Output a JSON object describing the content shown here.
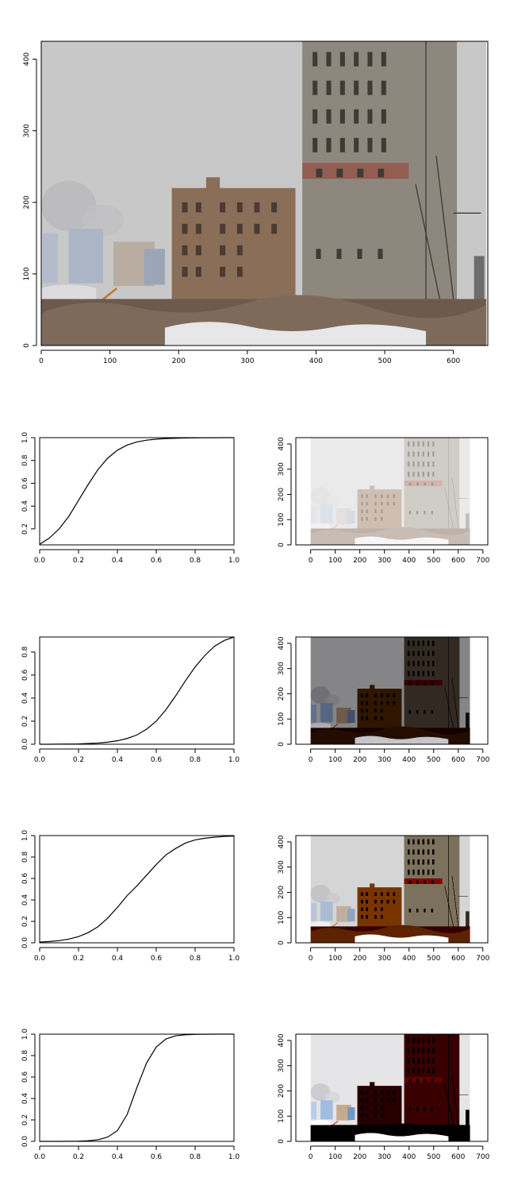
{
  "chart_data": [
    {
      "id": "main-photo",
      "type": "image-plot",
      "xlim": [
        0,
        650
      ],
      "ylim": [
        0,
        425
      ],
      "x_ticks": [
        0,
        100,
        200,
        300,
        400,
        500,
        600
      ],
      "y_ticks": [
        0,
        100,
        200,
        300,
        400
      ],
      "image": {
        "width": 648,
        "height": 425
      }
    },
    {
      "id": "curve-1",
      "type": "line",
      "xlim": [
        0,
        1
      ],
      "ylim": [
        0.06,
        1.0
      ],
      "x_ticks": [
        0.0,
        0.2,
        0.4,
        0.6,
        0.8,
        1.0
      ],
      "y_ticks": [
        0.2,
        0.4,
        0.6,
        0.8,
        1.0
      ],
      "x": [
        0,
        0.05,
        0.1,
        0.15,
        0.2,
        0.25,
        0.3,
        0.35,
        0.4,
        0.45,
        0.5,
        0.55,
        0.6,
        0.65,
        0.7,
        0.75,
        0.8,
        0.85,
        0.9,
        0.95,
        1.0
      ],
      "y": [
        0.065,
        0.12,
        0.2,
        0.31,
        0.45,
        0.59,
        0.72,
        0.82,
        0.89,
        0.935,
        0.962,
        0.978,
        0.987,
        0.992,
        0.995,
        0.997,
        0.998,
        0.999,
        0.999,
        1.0,
        1.0
      ]
    },
    {
      "id": "photo-1",
      "type": "image-plot",
      "variant": "brightened",
      "xlim": [
        -60,
        720
      ],
      "ylim": [
        0,
        425
      ],
      "x_ticks": [
        0,
        100,
        200,
        300,
        400,
        500,
        600,
        700
      ],
      "y_ticks": [
        0,
        100,
        200,
        300,
        400
      ]
    },
    {
      "id": "curve-2",
      "type": "line",
      "xlim": [
        0,
        1
      ],
      "ylim": [
        0,
        0.93
      ],
      "x_ticks": [
        0.0,
        0.2,
        0.4,
        0.6,
        0.8,
        1.0
      ],
      "y_ticks": [
        0.0,
        0.2,
        0.4,
        0.6,
        0.8
      ],
      "x": [
        0,
        0.05,
        0.1,
        0.15,
        0.2,
        0.25,
        0.3,
        0.35,
        0.4,
        0.45,
        0.5,
        0.55,
        0.6,
        0.65,
        0.7,
        0.75,
        0.8,
        0.85,
        0.9,
        0.95,
        1.0
      ],
      "y": [
        0.0,
        0.0,
        0.001,
        0.002,
        0.003,
        0.006,
        0.01,
        0.018,
        0.03,
        0.05,
        0.08,
        0.13,
        0.2,
        0.3,
        0.42,
        0.55,
        0.67,
        0.77,
        0.85,
        0.9,
        0.93
      ]
    },
    {
      "id": "photo-2",
      "type": "image-plot",
      "variant": "darkened",
      "xlim": [
        -60,
        720
      ],
      "ylim": [
        0,
        425
      ],
      "x_ticks": [
        0,
        100,
        200,
        300,
        400,
        500,
        600,
        700
      ],
      "y_ticks": [
        0,
        100,
        200,
        300,
        400
      ]
    },
    {
      "id": "curve-3",
      "type": "line",
      "xlim": [
        0,
        1
      ],
      "ylim": [
        0,
        1.0
      ],
      "x_ticks": [
        0.0,
        0.2,
        0.4,
        0.6,
        0.8,
        1.0
      ],
      "y_ticks": [
        0.0,
        0.2,
        0.4,
        0.6,
        0.8,
        1.0
      ],
      "x": [
        0,
        0.05,
        0.1,
        0.15,
        0.2,
        0.25,
        0.3,
        0.35,
        0.4,
        0.45,
        0.5,
        0.55,
        0.6,
        0.65,
        0.7,
        0.75,
        0.8,
        0.85,
        0.9,
        0.95,
        1.0
      ],
      "y": [
        0.007,
        0.012,
        0.02,
        0.035,
        0.058,
        0.095,
        0.15,
        0.23,
        0.33,
        0.44,
        0.53,
        0.63,
        0.73,
        0.82,
        0.88,
        0.93,
        0.96,
        0.975,
        0.985,
        0.992,
        0.995
      ]
    },
    {
      "id": "photo-3",
      "type": "image-plot",
      "variant": "contrast",
      "xlim": [
        -60,
        720
      ],
      "ylim": [
        0,
        425
      ],
      "x_ticks": [
        0,
        100,
        200,
        300,
        400,
        500,
        600,
        700
      ],
      "y_ticks": [
        0,
        100,
        200,
        300,
        400
      ]
    },
    {
      "id": "curve-4",
      "type": "line",
      "xlim": [
        0,
        1
      ],
      "ylim": [
        0,
        1.0
      ],
      "x_ticks": [
        0.0,
        0.2,
        0.4,
        0.6,
        0.8,
        1.0
      ],
      "y_ticks": [
        0.0,
        0.2,
        0.4,
        0.6,
        0.8,
        1.0
      ],
      "x": [
        0,
        0.05,
        0.1,
        0.15,
        0.2,
        0.25,
        0.3,
        0.35,
        0.4,
        0.45,
        0.5,
        0.55,
        0.6,
        0.65,
        0.7,
        0.75,
        0.8,
        0.85,
        0.9,
        0.95,
        1.0
      ],
      "y": [
        0.0,
        0.0,
        0.0,
        0.001,
        0.002,
        0.006,
        0.015,
        0.04,
        0.1,
        0.25,
        0.5,
        0.73,
        0.88,
        0.955,
        0.985,
        0.994,
        0.998,
        0.999,
        1.0,
        1.0,
        1.0
      ]
    },
    {
      "id": "photo-4",
      "type": "image-plot",
      "variant": "high-contrast",
      "xlim": [
        -60,
        720
      ],
      "ylim": [
        0,
        425
      ],
      "x_ticks": [
        0,
        100,
        200,
        300,
        400,
        500,
        600,
        700
      ],
      "y_ticks": [
        0,
        100,
        200,
        300,
        400
      ]
    }
  ],
  "colors": {
    "sky": "#c9c9c9",
    "tower": "#8e877c",
    "brick": "#8c6f5a",
    "ground": "#6e5a4c",
    "snow": "#e9e9ea",
    "smoke": "#b7b7b9",
    "glass_blue": "#aeb9c9",
    "red_band": "#9b3a2e"
  }
}
